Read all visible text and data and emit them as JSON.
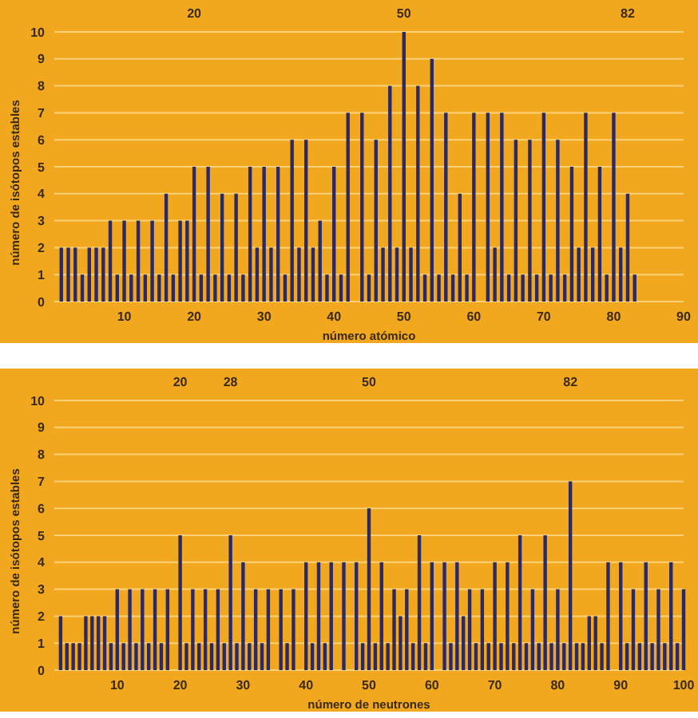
{
  "chart_data": [
    {
      "type": "bar",
      "xlabel": "número atómico",
      "ylabel": "número de isótopos estables",
      "color": "#2b2a66",
      "grid": "y",
      "x": [
        1,
        2,
        3,
        4,
        5,
        6,
        7,
        8,
        9,
        10,
        11,
        12,
        13,
        14,
        15,
        16,
        17,
        18,
        19,
        20,
        21,
        22,
        23,
        24,
        25,
        26,
        27,
        28,
        29,
        30,
        31,
        32,
        33,
        34,
        35,
        36,
        37,
        38,
        39,
        40,
        41,
        42,
        44,
        45,
        46,
        47,
        48,
        49,
        50,
        51,
        52,
        53,
        54,
        55,
        56,
        57,
        58,
        59,
        60,
        62,
        63,
        64,
        65,
        66,
        67,
        68,
        69,
        70,
        71,
        72,
        73,
        74,
        75,
        76,
        77,
        78,
        79,
        80,
        81,
        82,
        83
      ],
      "values": [
        2,
        2,
        2,
        1,
        2,
        2,
        2,
        3,
        1,
        3,
        1,
        3,
        1,
        3,
        1,
        4,
        1,
        3,
        3,
        5,
        1,
        5,
        1,
        4,
        1,
        4,
        1,
        5,
        2,
        5,
        2,
        5,
        1,
        6,
        2,
        6,
        2,
        3,
        1,
        5,
        1,
        7,
        7,
        1,
        6,
        2,
        8,
        2,
        10,
        2,
        8,
        1,
        9,
        1,
        7,
        1,
        4,
        1,
        7,
        7,
        2,
        7,
        1,
        6,
        1,
        6,
        1,
        7,
        1,
        6,
        1,
        5,
        2,
        7,
        2,
        5,
        1,
        7,
        2,
        4,
        1
      ],
      "xlim": [
        0,
        90
      ],
      "xticks": [
        10,
        20,
        30,
        40,
        50,
        60,
        70,
        80,
        90
      ],
      "ylim": [
        0,
        10
      ],
      "yticks": [
        0,
        1,
        2,
        3,
        4,
        5,
        6,
        7,
        8,
        9,
        10
      ],
      "x2lim": [
        0,
        90
      ],
      "x2ticks": [
        20,
        50,
        82
      ]
    },
    {
      "type": "bar",
      "xlabel": "número de neutrones",
      "ylabel": "número de isótopos estables",
      "color": "#2b2a66",
      "grid": "y",
      "x": [
        1,
        2,
        3,
        4,
        5,
        6,
        7,
        8,
        9,
        10,
        11,
        12,
        13,
        14,
        15,
        16,
        17,
        18,
        20,
        21,
        22,
        23,
        24,
        25,
        26,
        27,
        28,
        29,
        30,
        31,
        32,
        33,
        34,
        36,
        37,
        38,
        40,
        41,
        42,
        43,
        44,
        46,
        48,
        49,
        50,
        51,
        52,
        53,
        54,
        55,
        56,
        57,
        58,
        59,
        60,
        62,
        63,
        64,
        65,
        66,
        67,
        68,
        69,
        70,
        71,
        72,
        73,
        74,
        75,
        76,
        77,
        78,
        79,
        80,
        81,
        82,
        83,
        84,
        85,
        86,
        87,
        88,
        90,
        91,
        92,
        93,
        94,
        95,
        96,
        97,
        98,
        99,
        100
      ],
      "values": [
        2,
        1,
        1,
        1,
        2,
        2,
        2,
        2,
        1,
        3,
        1,
        3,
        1,
        3,
        1,
        3,
        1,
        3,
        5,
        1,
        3,
        1,
        3,
        1,
        3,
        1,
        5,
        1,
        4,
        1,
        3,
        1,
        3,
        3,
        1,
        3,
        4,
        1,
        4,
        1,
        4,
        4,
        4,
        1,
        6,
        1,
        4,
        1,
        3,
        2,
        3,
        1,
        5,
        1,
        4,
        4,
        1,
        4,
        2,
        3,
        1,
        3,
        1,
        4,
        1,
        4,
        1,
        5,
        1,
        3,
        1,
        5,
        1,
        3,
        1,
        7,
        1,
        1,
        2,
        2,
        1,
        4,
        4,
        1,
        3,
        1,
        4,
        1,
        3,
        1,
        4,
        1,
        3
      ],
      "xlim": [
        0,
        100
      ],
      "xticks": [
        10,
        20,
        30,
        40,
        50,
        60,
        70,
        80,
        90,
        100
      ],
      "ylim": [
        0,
        10
      ],
      "yticks": [
        0,
        1,
        2,
        3,
        4,
        5,
        6,
        7,
        8,
        9,
        10
      ],
      "x2lim": [
        0,
        100
      ],
      "x2ticks": [
        20,
        28,
        50,
        82
      ]
    }
  ]
}
